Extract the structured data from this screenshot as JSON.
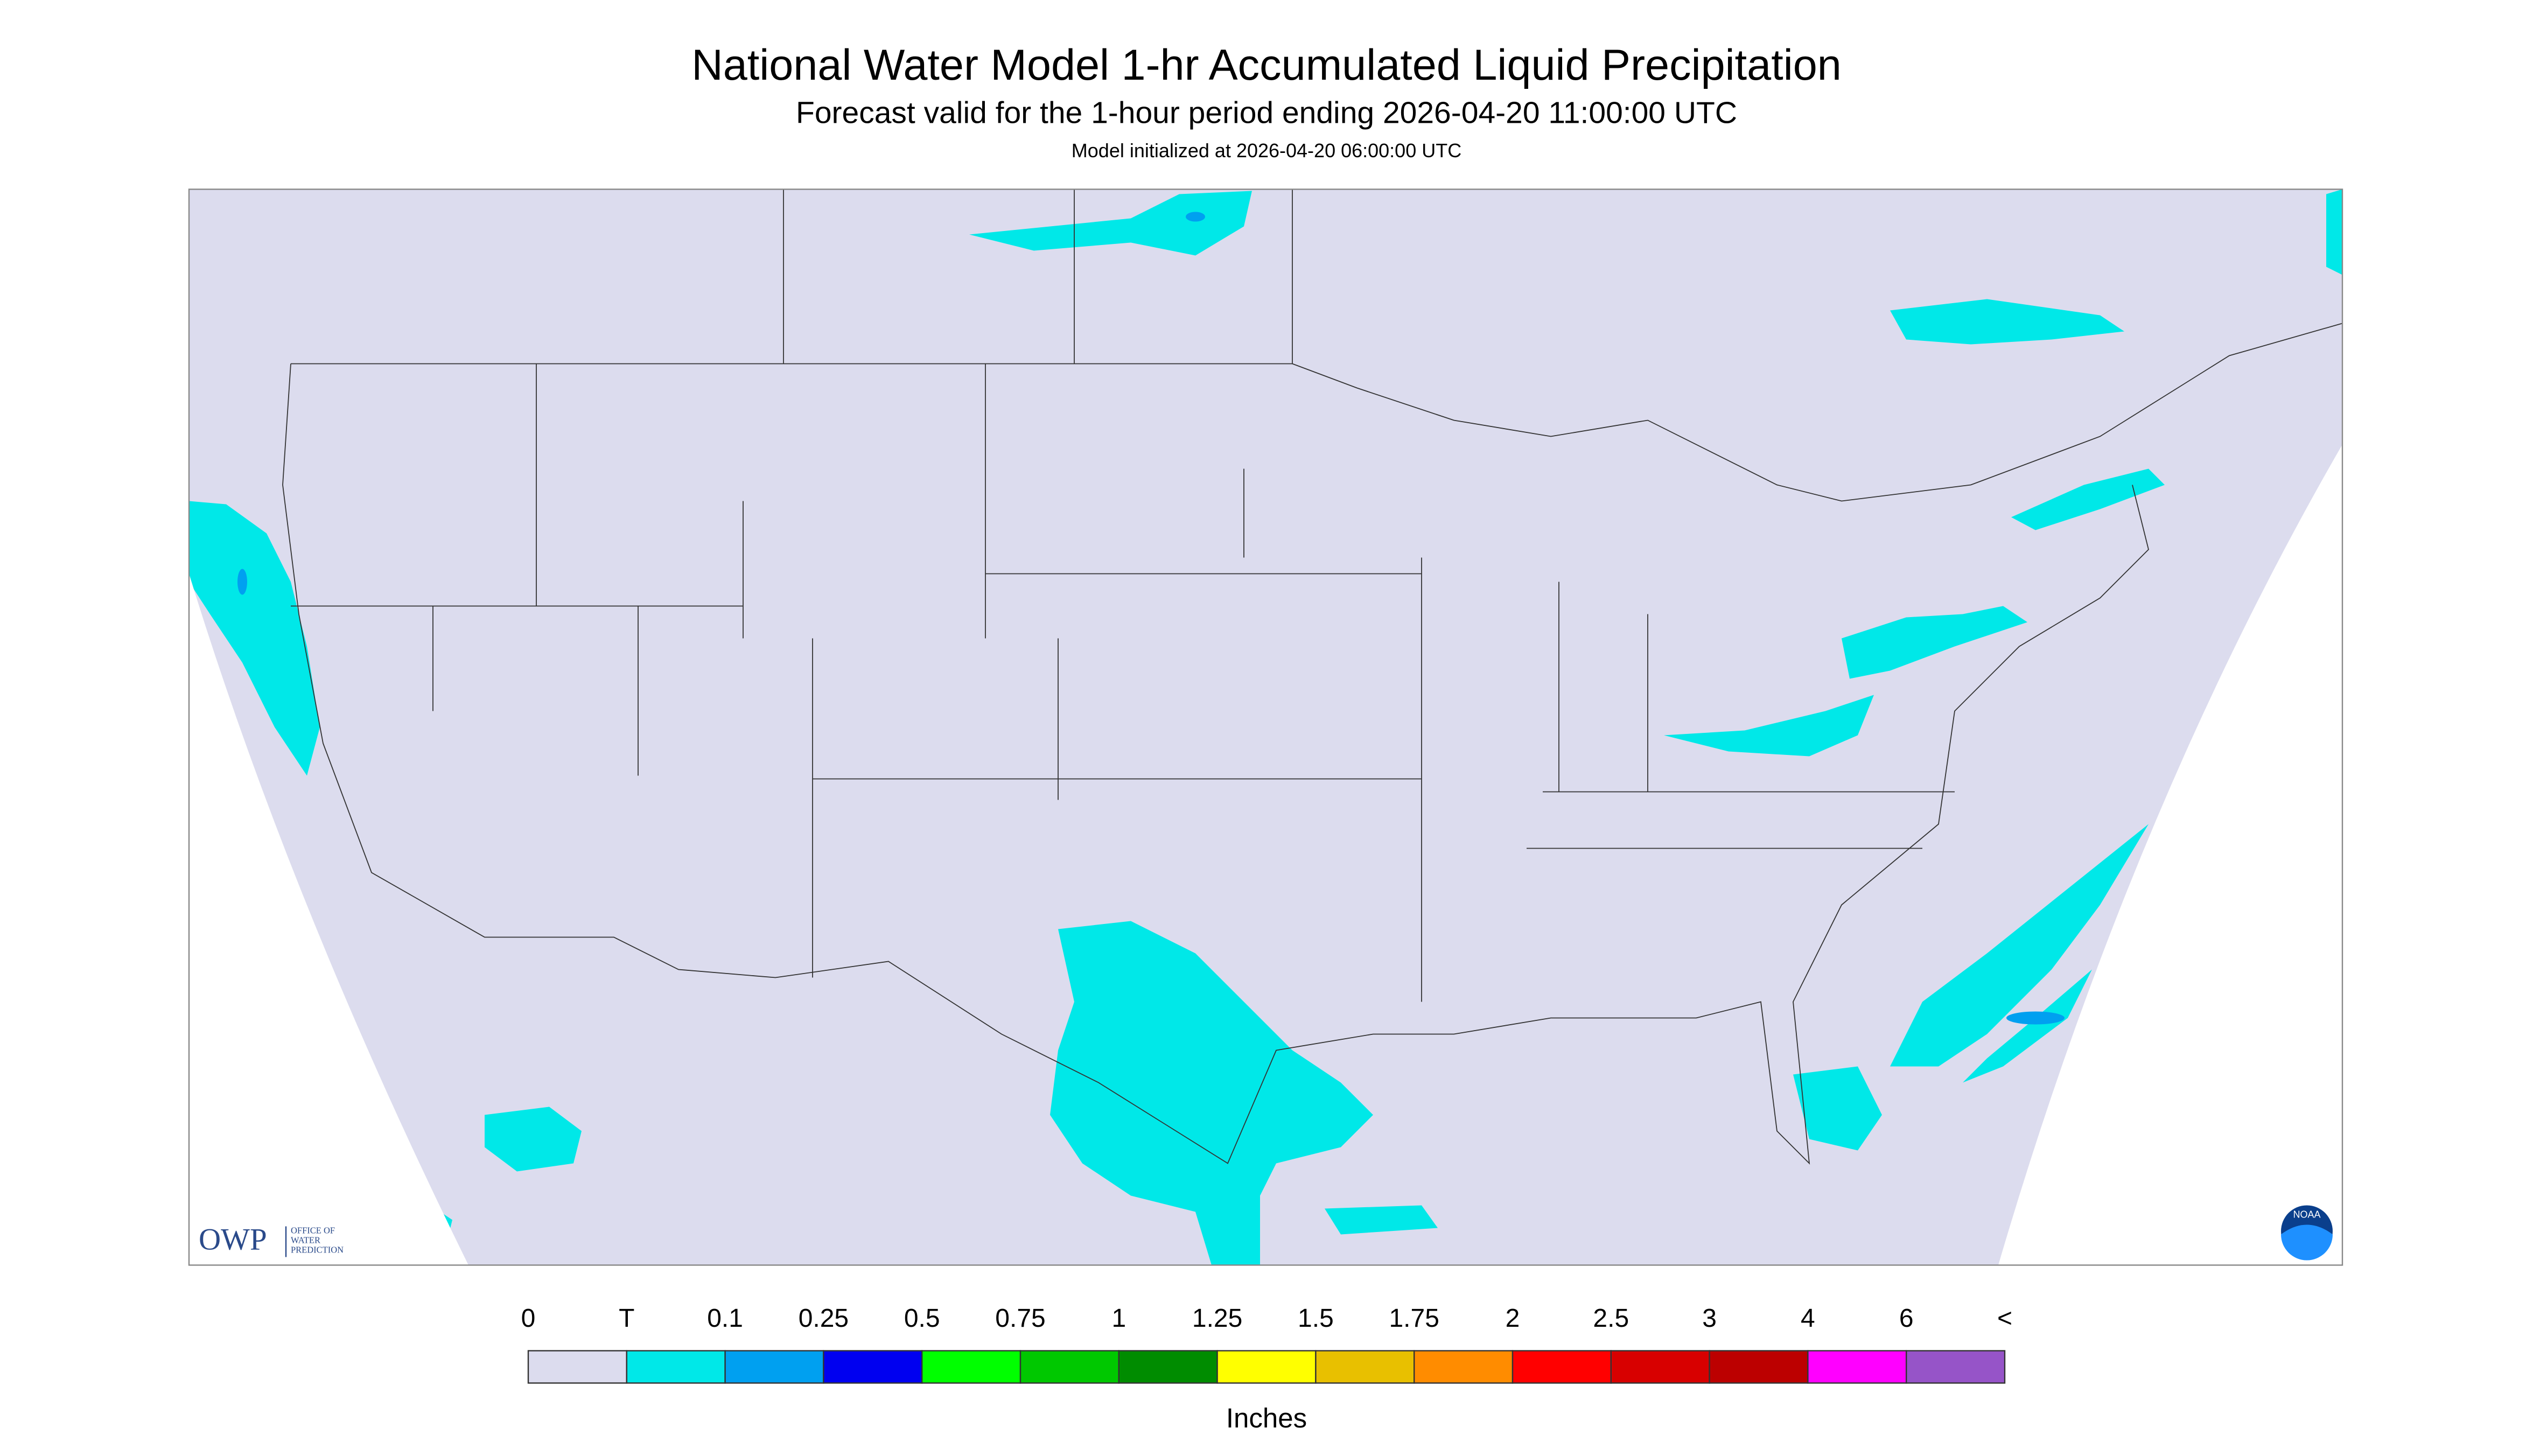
{
  "map": {
    "title": "National Water Model 1-hr Accumulated Liquid Precipitation",
    "subtitle": "Forecast valid for the 1-hour period ending 2026-04-20 11:00:00 UTC",
    "note": "Model initialized at 2026-04-20 06:00:00 UTC"
  },
  "legend": {
    "labels": [
      "0",
      "T",
      "0.1",
      "0.25",
      "0.5",
      "0.75",
      "1",
      "1.25",
      "1.5",
      "1.75",
      "2",
      "2.5",
      "3",
      "4",
      "6",
      "<"
    ],
    "colors": [
      "#dcdcee",
      "#00e8e8",
      "#00a0f0",
      "#0000f0",
      "#00ff00",
      "#00c800",
      "#008c00",
      "#ffff00",
      "#e8c000",
      "#ff8c00",
      "#ff0000",
      "#d80000",
      "#bc0000",
      "#ff00ff",
      "#9654c8"
    ],
    "unit": "Inches"
  },
  "logos": {
    "owp": "OWP",
    "owp_lines": [
      "OFFICE OF",
      "WATER",
      "PREDICTION"
    ],
    "noaa": "NOAA"
  }
}
